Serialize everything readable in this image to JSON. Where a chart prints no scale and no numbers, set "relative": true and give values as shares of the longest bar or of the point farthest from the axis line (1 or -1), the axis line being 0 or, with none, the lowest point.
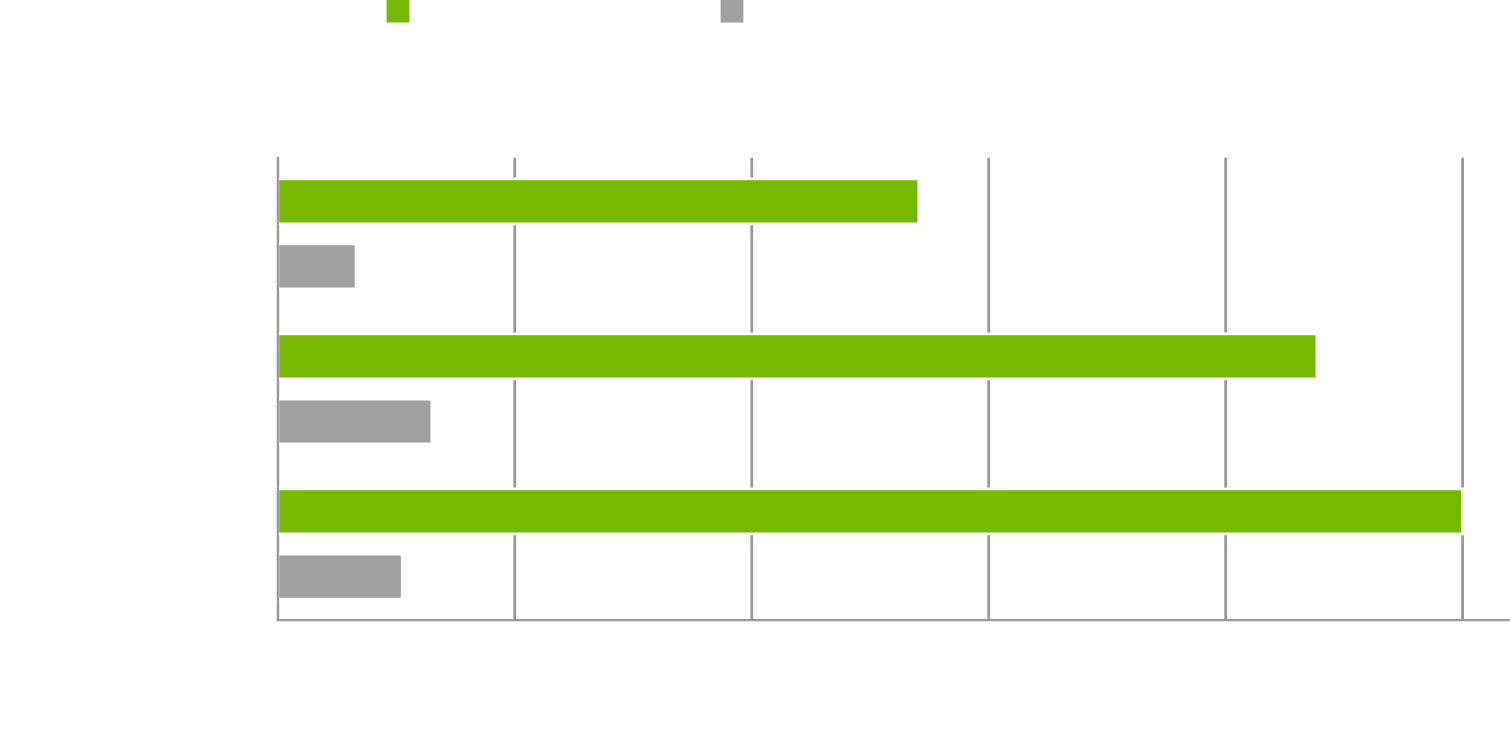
{
  "chart_data": {
    "type": "bar",
    "orientation": "horizontal",
    "relative": true,
    "categories": [
      null,
      null,
      null
    ],
    "series": [
      {
        "color": "#76b900",
        "values": [
          0.541,
          0.877,
          1
        ]
      },
      {
        "color": "#a0a0a0",
        "values": [
          0.066,
          0.13,
          0.105
        ]
      }
    ],
    "grid": "x"
  }
}
